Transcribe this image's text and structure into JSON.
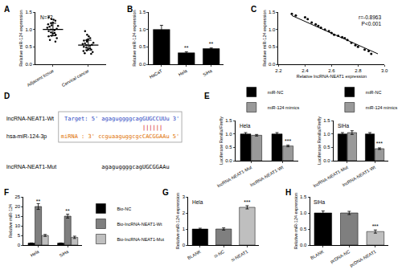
{
  "chart_data": [
    {
      "panel": "A",
      "type": "dot",
      "categories": [
        "Adjacent tissue",
        "Cervical cancer"
      ],
      "values": [
        [
          1.35,
          1.3,
          1.28,
          1.25,
          1.2,
          1.18,
          1.15,
          1.12,
          1.1,
          1.08,
          1.05,
          1.02,
          1.0,
          0.98,
          0.95,
          0.92,
          0.9,
          0.88,
          0.85,
          0.82,
          0.8,
          0.75,
          0.7,
          0.65
        ],
        [
          0.95,
          0.85,
          0.8,
          0.75,
          0.72,
          0.7,
          0.68,
          0.65,
          0.62,
          0.6,
          0.58,
          0.56,
          0.55,
          0.53,
          0.5,
          0.48,
          0.46,
          0.44,
          0.42,
          0.4,
          0.38,
          0.35,
          0.32,
          0.3
        ]
      ],
      "mean": [
        1.0,
        0.55
      ],
      "sd": [
        0.18,
        0.14
      ],
      "color": "#000000",
      "marker": "circle",
      "notes": [
        "N=72"
      ],
      "y_label": "Relative miR-124 expression",
      "ylim": [
        0,
        1.5
      ],
      "yticks": [
        {
          "value": 0,
          "label": "0.0"
        },
        {
          "value": 0.5,
          "label": "0.5"
        },
        {
          "value": 1,
          "label": "1.0"
        },
        {
          "value": 1.5,
          "label": "1.5"
        }
      ]
    },
    {
      "panel": "B",
      "type": "bar",
      "categories": [
        "HaCaT",
        "Hela",
        "SiHa"
      ],
      "values": [
        1.0,
        0.33,
        0.45
      ],
      "errors": [
        0.12,
        0.03,
        0.02
      ],
      "sig": [
        null,
        "**",
        "**"
      ],
      "color": "#000000",
      "y_label": "Relative miR-124 expression",
      "ylim": [
        0,
        1.5
      ],
      "yticks": [
        {
          "value": 0,
          "label": "0.0"
        },
        {
          "value": 0.5,
          "label": "0.5"
        },
        {
          "value": 1,
          "label": "1.0"
        },
        {
          "value": 1.5,
          "label": "1.5"
        }
      ]
    },
    {
      "panel": "C",
      "type": "scatter",
      "x": [
        2.3,
        2.33,
        2.4,
        2.42,
        2.45,
        2.48,
        2.5,
        2.52,
        2.55,
        2.58,
        2.6,
        2.62,
        2.65,
        2.68,
        2.7,
        2.72,
        2.75,
        2.78,
        2.8,
        2.85,
        2.88,
        2.9
      ],
      "y": [
        1.45,
        1.4,
        1.35,
        1.3,
        1.2,
        1.15,
        1.1,
        1.05,
        1.0,
        0.95,
        0.9,
        0.85,
        0.82,
        0.78,
        0.75,
        0.7,
        0.62,
        0.55,
        0.5,
        0.42,
        0.38,
        0.3
      ],
      "fit": {
        "x": [
          2.3,
          2.95
        ],
        "y": [
          1.4,
          0.3
        ]
      },
      "color": "#000000",
      "marker": "circle",
      "notes": [
        "r=-0.8963",
        "P<0.001"
      ],
      "x_label": "Relative lncRNA-NEAT1 expression",
      "y_label": "Relative miR-124 expression",
      "xlim": [
        2.2,
        3.0
      ],
      "xticks": [
        2.2,
        2.4,
        2.6,
        2.8,
        {
          "value": 3.0,
          "label": "3.0"
        }
      ],
      "ylim": [
        0,
        1.5
      ],
      "yticks": [
        {
          "value": 0,
          "label": "0.0"
        },
        {
          "value": 0.5,
          "label": "0.5"
        },
        {
          "value": 1,
          "label": "1.0"
        },
        {
          "value": 1.5,
          "label": "1.5"
        }
      ]
    },
    {
      "panel": "E",
      "type": "bar",
      "title": "Hela",
      "categories": [
        "lncRNA-NEAT1-Mut",
        "lncRNA-NEAT1-Wt"
      ],
      "legend": "top",
      "series": [
        {
          "name": "miR-NC",
          "color": "#000000",
          "values": [
            1.0,
            1.0
          ],
          "errors": [
            0.05,
            0.05
          ],
          "sig": [
            null,
            null
          ]
        },
        {
          "name": "miR-124 mimics",
          "color": "#999999",
          "values": [
            0.95,
            0.55
          ],
          "errors": [
            0.03,
            0.03
          ],
          "sig": [
            null,
            "***"
          ]
        }
      ],
      "y_label": "Luciferase Renilla/Firefly",
      "ylim": [
        0,
        1.5
      ],
      "yticks": [
        {
          "value": 0,
          "label": "0.0"
        },
        {
          "value": 0.5,
          "label": "0.5"
        },
        {
          "value": 1,
          "label": "1.0"
        },
        {
          "value": 1.5,
          "label": "1.5"
        }
      ]
    },
    {
      "type": "bar",
      "title": "SiHa",
      "categories": [
        "lncRNA-NEAT1-Mut",
        "lncRNA-NEAT1-Wt"
      ],
      "legend": "top",
      "series": [
        {
          "name": "miR-NC",
          "color": "#000000",
          "values": [
            1.0,
            1.0
          ],
          "errors": [
            0.05,
            0.05
          ],
          "sig": [
            null,
            null
          ]
        },
        {
          "name": "miR-124 mimics",
          "color": "#999999",
          "values": [
            1.05,
            0.45
          ],
          "errors": [
            0.07,
            0.03
          ],
          "sig": [
            null,
            "***"
          ]
        }
      ],
      "y_label": "Luciferase Renilla/Firefly",
      "ylim": [
        0,
        1.5
      ],
      "yticks": [
        {
          "value": 0,
          "label": "0.0"
        },
        {
          "value": 0.5,
          "label": "0.5"
        },
        {
          "value": 1,
          "label": "1.0"
        },
        {
          "value": 1.5,
          "label": "1.5"
        }
      ]
    },
    {
      "panel": "F",
      "type": "bar",
      "categories": [
        "Hela",
        "SiHa"
      ],
      "legend": "right",
      "series": [
        {
          "name": "Bio-NC",
          "color": "#000000",
          "values": [
            1,
            1
          ],
          "errors": [
            0.1,
            0.1
          ],
          "sig": [
            null,
            null
          ]
        },
        {
          "name": "Bio-lncRNA-NEAT1-Wt",
          "color": "#7f7f7f",
          "values": [
            20,
            15
          ],
          "errors": [
            1.5,
            1
          ],
          "sig": [
            "**",
            "**"
          ]
        },
        {
          "name": "Bio-lncRNA-NEAT1-Mut",
          "color": "#bfbfbf",
          "values": [
            5,
            4
          ],
          "errors": [
            0.5,
            0.6
          ],
          "sig": [
            null,
            null
          ]
        }
      ],
      "y_label": "Relative miR-124",
      "ylim": [
        0,
        25
      ],
      "yticks": [
        0,
        5,
        10,
        15,
        20,
        25
      ]
    },
    {
      "panel": "G",
      "type": "bar",
      "title": "Hela",
      "categories": [
        "BLANK",
        "si-NC",
        "si-NEAT1"
      ],
      "values": [
        1.0,
        1.0,
        2.35
      ],
      "errors": [
        0.05,
        0.07,
        0.1
      ],
      "sig": [
        null,
        null,
        "***"
      ],
      "colors": [
        "#000000",
        "#7f7f7f",
        "#bfbfbf"
      ],
      "y_label": "Relative miR-124 expression",
      "ylim": [
        0,
        3
      ],
      "yticks": [
        0,
        1,
        2,
        3
      ]
    },
    {
      "panel": "H",
      "type": "bar",
      "title": "SiHa",
      "categories": [
        "BLANK",
        "pcDNA-NC",
        "pcDNA-NEAT1"
      ],
      "values": [
        1.0,
        1.0,
        0.42
      ],
      "errors": [
        0.06,
        0.05,
        0.05
      ],
      "sig": [
        null,
        null,
        "***"
      ],
      "colors": [
        "#000000",
        "#7f7f7f",
        "#bfbfbf"
      ],
      "y_label": "Relative miR-124 expression",
      "ylim": [
        0,
        1.5
      ],
      "yticks": [
        {
          "value": 0,
          "label": "0.0"
        },
        {
          "value": 0.5,
          "label": "0.5"
        },
        {
          "value": 1,
          "label": "1.0"
        },
        {
          "value": 1.5,
          "label": "1.5"
        }
      ]
    }
  ],
  "diagram": {
    "panel": "D",
    "wt_label": "lncRNA-NEAT1-Wt",
    "target_prefix": "Target: 5' ",
    "target_seq": "agaguggggcagGUGCCUUu",
    "target_suffix": " 3'",
    "pairing": "||||||",
    "mirna_label": "hsa-miR-124-3p",
    "mirna_prefix": "miRNA : 3' ",
    "mirna_seq": "ccguaaguggcgcCACGGAAu",
    "mirna_suffix": " 5'",
    "mut_label": "lncRNA-NEAT1-Mut",
    "mut_seq": "agaguggggcagUGCGGAAu"
  }
}
